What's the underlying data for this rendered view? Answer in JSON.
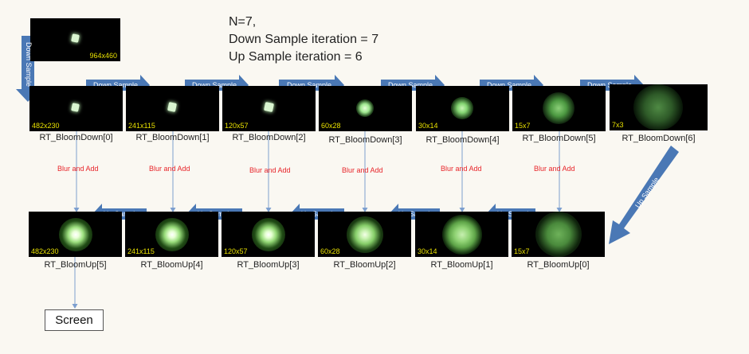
{
  "header": {
    "line1": "N=7,",
    "line2": "Down Sample iteration = 7",
    "line3": "Up Sample iteration = 6"
  },
  "source": {
    "resolution": "964x460"
  },
  "arrows": {
    "down_sample": "Down Sample",
    "up_sample": "Up Sample",
    "blur_add": "Blur and Add"
  },
  "down_row": [
    {
      "name": "RT_BloomDown[0]",
      "resolution": "482x230"
    },
    {
      "name": "RT_BloomDown[1]",
      "resolution": "241x115"
    },
    {
      "name": "RT_BloomDown[2]",
      "resolution": "120x57"
    },
    {
      "name": "RT_BloomDown[3]",
      "resolution": "60x28"
    },
    {
      "name": "RT_BloomDown[4]",
      "resolution": "30x14"
    },
    {
      "name": "RT_BloomDown[5]",
      "resolution": "15x7"
    },
    {
      "name": "RT_BloomDown[6]",
      "resolution": "7x3"
    }
  ],
  "up_row": [
    {
      "name": "RT_BloomUp[5]",
      "resolution": "482x230"
    },
    {
      "name": "RT_BloomUp[4]",
      "resolution": "241x115"
    },
    {
      "name": "RT_BloomUp[3]",
      "resolution": "120x57"
    },
    {
      "name": "RT_BloomUp[2]",
      "resolution": "60x28"
    },
    {
      "name": "RT_BloomUp[1]",
      "resolution": "30x14"
    },
    {
      "name": "RT_BloomUp[0]",
      "resolution": "15x7"
    }
  ],
  "output": {
    "label": "Screen"
  },
  "colors": {
    "arrow_fill": "#4a78b5",
    "connector": "#7d9fcf",
    "blur_text": "#e8252a",
    "resolution_text": "#e8e000"
  }
}
